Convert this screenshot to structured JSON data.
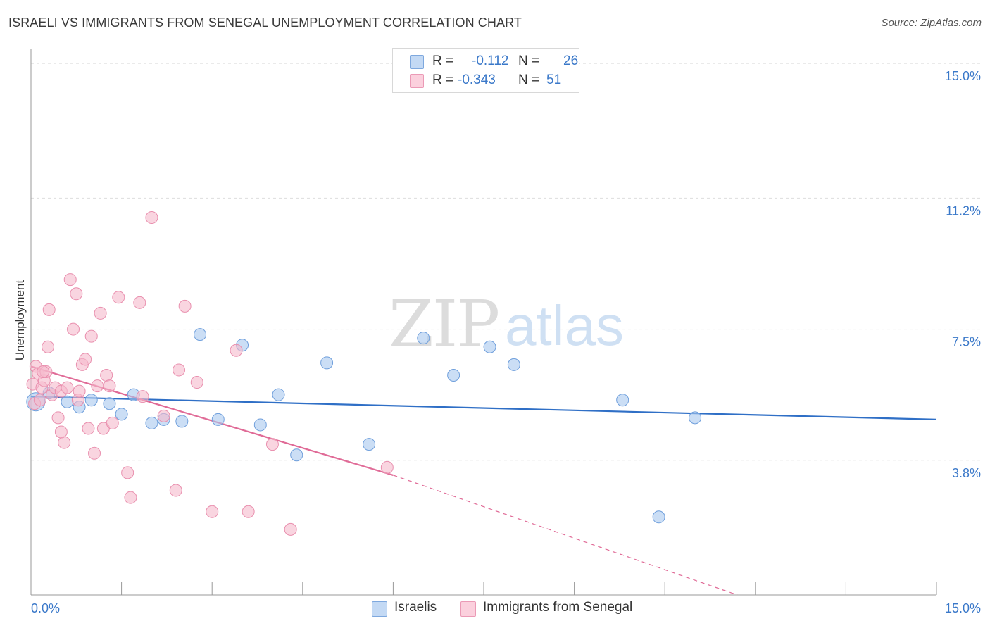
{
  "header": {
    "title": "ISRAELI VS IMMIGRANTS FROM SENEGAL UNEMPLOYMENT CORRELATION CHART",
    "source": "Source: ZipAtlas.com"
  },
  "watermark": {
    "zip": "ZIP",
    "atlas": "atlas"
  },
  "legend": {
    "rows": [
      {
        "r_label": "R =",
        "r_value": "-0.112",
        "n_label": "N =",
        "n_value": "26",
        "color": "#a9c8ef"
      },
      {
        "r_label": "R =",
        "r_value": "-0.343",
        "n_label": "N =",
        "n_value": "51",
        "color": "#f5b9cb"
      }
    ]
  },
  "bottom_legend": [
    {
      "label": "Israelis",
      "color": "#a9c8ef"
    },
    {
      "label": "Immigrants from Senegal",
      "color": "#f5b9cb"
    }
  ],
  "colors": {
    "blue_fill": "#a9c8ef",
    "blue_line": "#2f6fc6",
    "blue_stroke": "#6f9fdc",
    "pink_fill": "#f5b9cb",
    "pink_line": "#e06b97",
    "pink_stroke": "#e98fae",
    "tick_label": "#3a78c9",
    "grid": "#dddddd"
  },
  "chart_data": {
    "type": "scatter",
    "title": "ISRAELI VS IMMIGRANTS FROM SENEGAL UNEMPLOYMENT CORRELATION CHART",
    "xlabel": "",
    "ylabel": "Unemployment",
    "xlim": [
      0,
      15
    ],
    "ylim": [
      0,
      15.4
    ],
    "x_tick_labels": [
      "0.0%",
      "15.0%"
    ],
    "y_ticks": [
      3.8,
      7.5,
      11.2,
      15.0
    ],
    "y_tick_labels": [
      "3.8%",
      "7.5%",
      "11.2%",
      "15.0%"
    ],
    "grid": "horizontal dashed",
    "legend_position": "top-center",
    "series": [
      {
        "name": "Israelis",
        "color": "#a9c8ef",
        "points": [
          [
            0.08,
            5.45
          ],
          [
            0.3,
            5.7
          ],
          [
            0.6,
            5.45
          ],
          [
            0.8,
            5.3
          ],
          [
            1.0,
            5.5
          ],
          [
            1.3,
            5.4
          ],
          [
            1.5,
            5.1
          ],
          [
            1.7,
            5.65
          ],
          [
            2.0,
            4.85
          ],
          [
            2.2,
            4.95
          ],
          [
            2.5,
            4.9
          ],
          [
            2.8,
            7.35
          ],
          [
            3.1,
            4.95
          ],
          [
            3.5,
            7.05
          ],
          [
            3.8,
            4.8
          ],
          [
            4.1,
            5.65
          ],
          [
            4.4,
            3.95
          ],
          [
            4.9,
            6.55
          ],
          [
            5.6,
            4.25
          ],
          [
            6.5,
            7.25
          ],
          [
            7.0,
            6.2
          ],
          [
            7.6,
            7.0
          ],
          [
            8.0,
            6.5
          ],
          [
            9.8,
            5.5
          ],
          [
            10.4,
            2.2
          ],
          [
            11.0,
            5.0
          ]
        ],
        "trend": {
          "x": [
            0.0,
            15.0
          ],
          "y": [
            5.6,
            4.95
          ]
        }
      },
      {
        "name": "Immigrants from Senegal",
        "color": "#f5b9cb",
        "points": [
          [
            0.03,
            5.95
          ],
          [
            0.06,
            5.4
          ],
          [
            0.08,
            6.45
          ],
          [
            0.12,
            6.25
          ],
          [
            0.18,
            5.85
          ],
          [
            0.22,
            6.05
          ],
          [
            0.25,
            6.3
          ],
          [
            0.28,
            7.0
          ],
          [
            0.3,
            8.05
          ],
          [
            0.35,
            5.65
          ],
          [
            0.4,
            5.85
          ],
          [
            0.45,
            5.0
          ],
          [
            0.5,
            5.75
          ],
          [
            0.55,
            4.3
          ],
          [
            0.6,
            5.85
          ],
          [
            0.65,
            8.9
          ],
          [
            0.7,
            7.5
          ],
          [
            0.75,
            8.5
          ],
          [
            0.78,
            5.5
          ],
          [
            0.8,
            5.75
          ],
          [
            0.85,
            6.5
          ],
          [
            0.9,
            6.65
          ],
          [
            0.95,
            4.7
          ],
          [
            1.0,
            7.3
          ],
          [
            1.05,
            4.0
          ],
          [
            1.1,
            5.9
          ],
          [
            1.15,
            7.95
          ],
          [
            1.2,
            4.7
          ],
          [
            1.25,
            6.2
          ],
          [
            1.3,
            5.9
          ],
          [
            1.35,
            4.85
          ],
          [
            1.45,
            8.4
          ],
          [
            1.6,
            3.45
          ],
          [
            1.65,
            2.75
          ],
          [
            1.8,
            8.25
          ],
          [
            1.85,
            5.6
          ],
          [
            2.0,
            10.65
          ],
          [
            2.2,
            5.05
          ],
          [
            2.4,
            2.95
          ],
          [
            2.45,
            6.35
          ],
          [
            2.55,
            8.15
          ],
          [
            2.75,
            6.0
          ],
          [
            3.0,
            2.35
          ],
          [
            3.4,
            6.9
          ],
          [
            3.6,
            2.35
          ],
          [
            4.0,
            4.25
          ],
          [
            4.3,
            1.85
          ],
          [
            5.9,
            3.6
          ],
          [
            0.15,
            5.5
          ],
          [
            0.5,
            4.6
          ],
          [
            0.2,
            6.3
          ]
        ],
        "trend": {
          "x": [
            0.0,
            6.0
          ],
          "y": [
            6.45,
            3.38
          ]
        },
        "trend_extension": {
          "x": [
            6.0,
            11.7
          ],
          "y": [
            3.38,
            0.0
          ]
        }
      }
    ]
  }
}
